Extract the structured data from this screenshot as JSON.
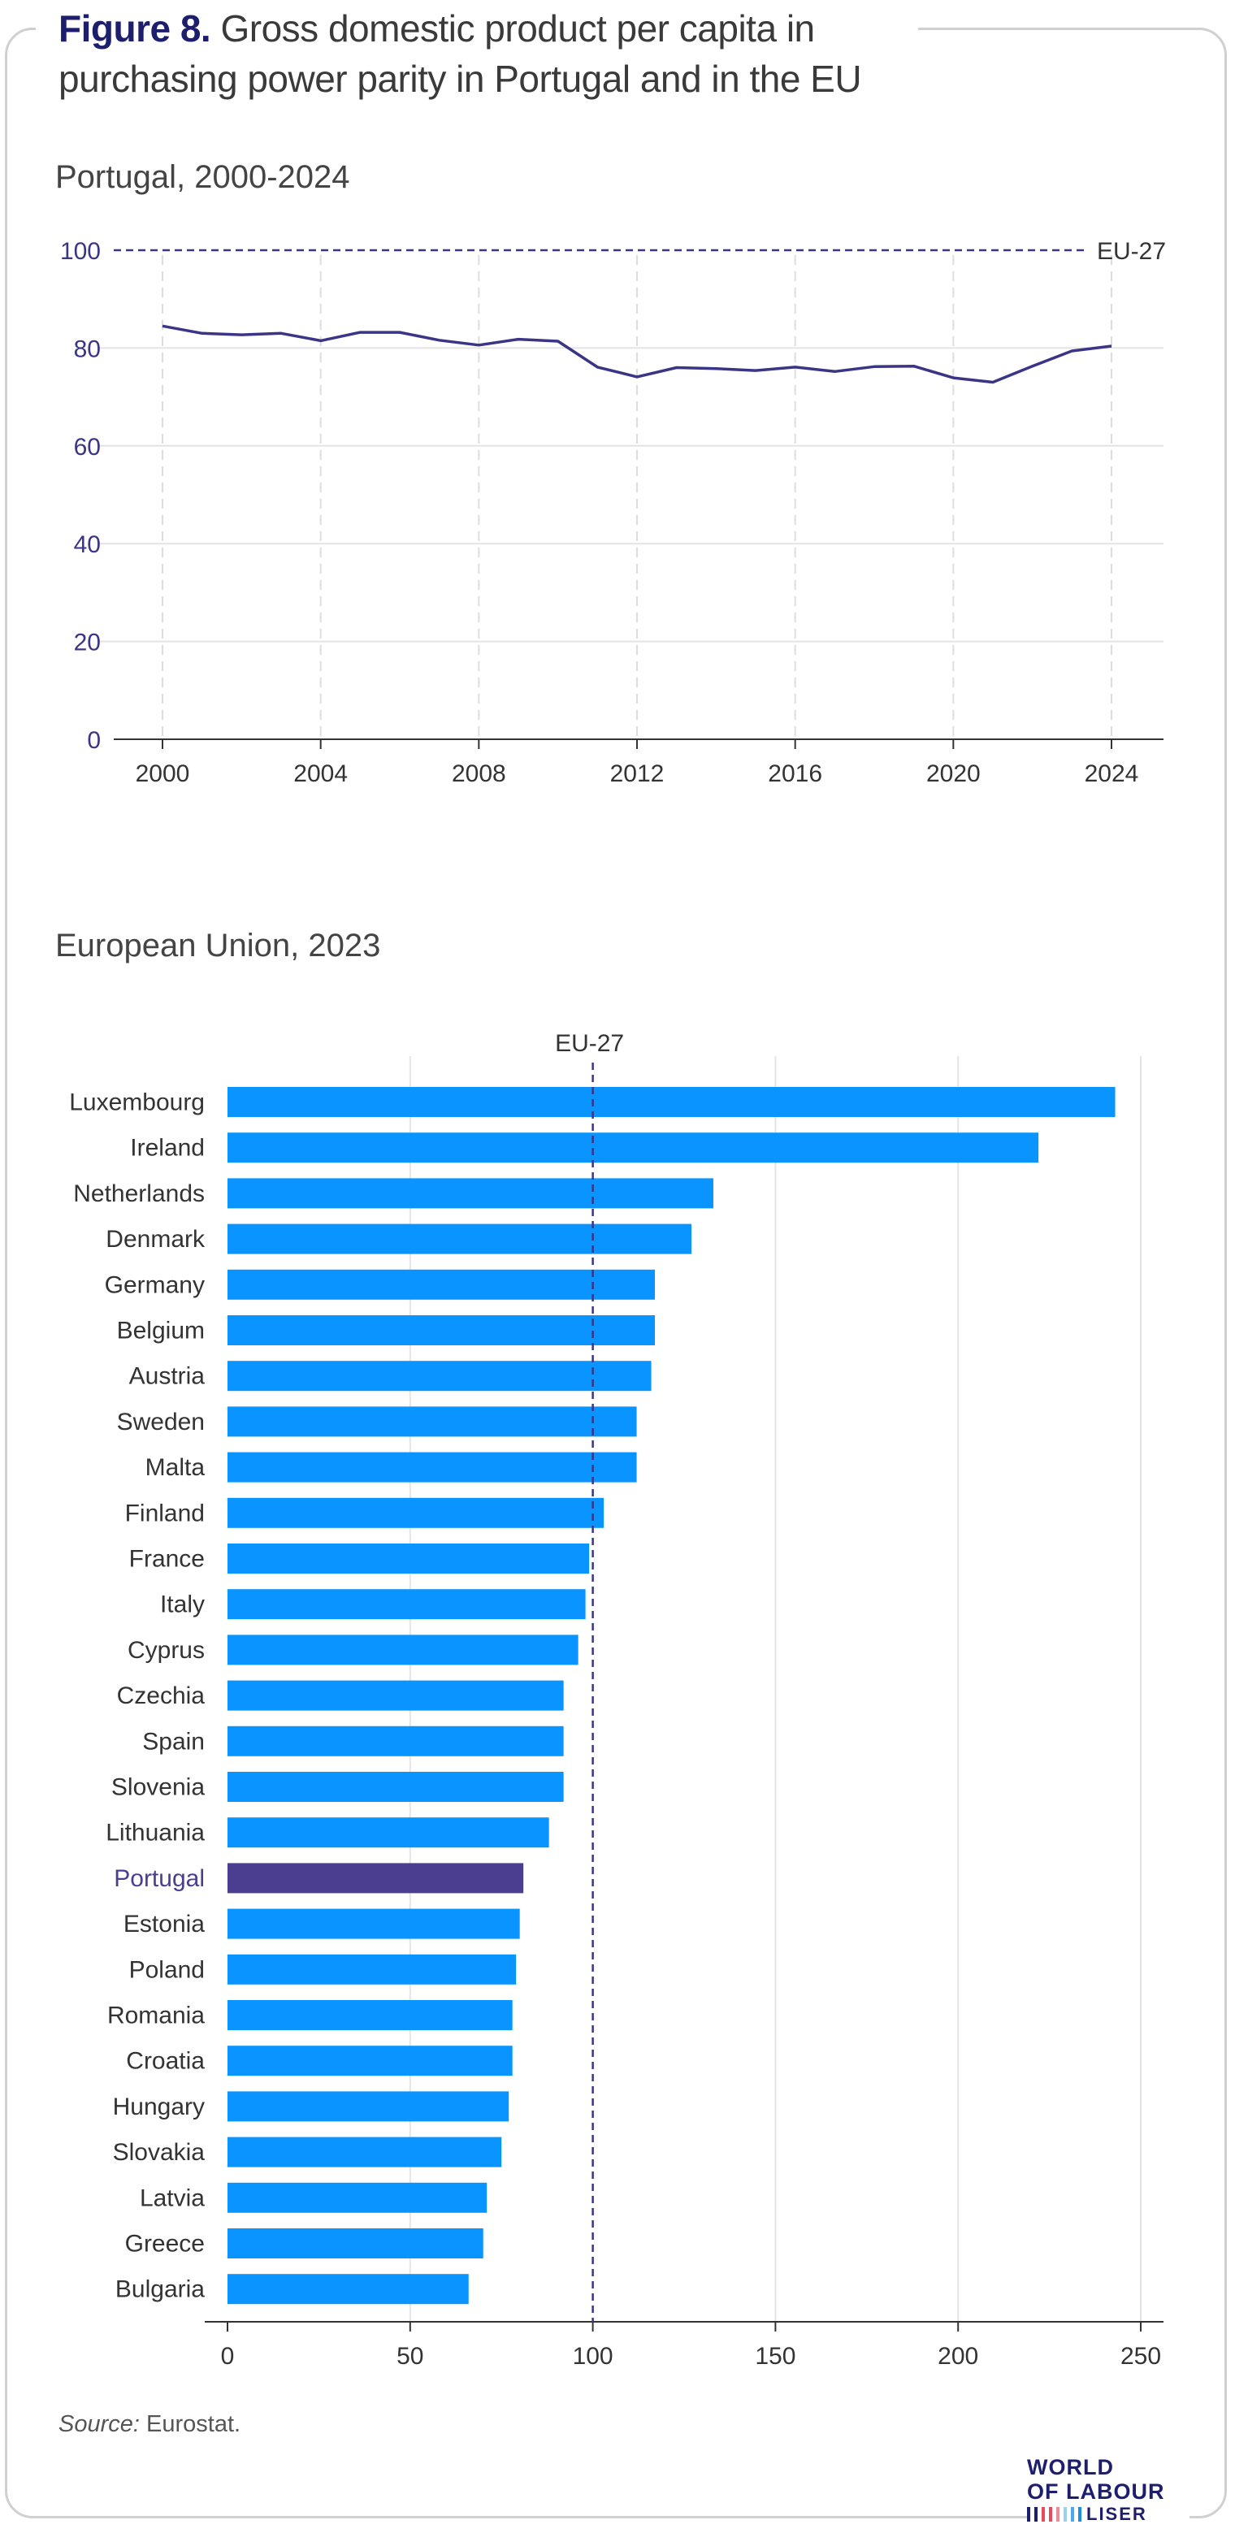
{
  "title": {
    "figure_label": "Figure 8.",
    "line1": "Gross domestic product per capita in",
    "line2": "purchasing power parity in Portugal and in the EU"
  },
  "source": {
    "label": "Source:",
    "text": "Eurostat."
  },
  "logo": {
    "line1": "WORLD",
    "line2": "OF LABOUR",
    "line3": "LISER"
  },
  "colors": {
    "line": "#3a3585",
    "bar": "#0a94ff",
    "bar_highlight": "#4b3e91",
    "reference": "#3a3585",
    "grid": "#e4e4e4",
    "axis_text_left": "#3a3585"
  },
  "chart_data": [
    {
      "type": "line",
      "title": "Portugal, 2000-2024",
      "x": [
        2000,
        2001,
        2002,
        2003,
        2004,
        2005,
        2006,
        2007,
        2008,
        2009,
        2010,
        2011,
        2012,
        2013,
        2014,
        2015,
        2016,
        2017,
        2018,
        2019,
        2020,
        2021,
        2022,
        2023,
        2024
      ],
      "series": [
        {
          "values": [
            84.5,
            83,
            82.7,
            83,
            81.5,
            83.2,
            83.2,
            81.6,
            80.6,
            81.8,
            81.4,
            76.1,
            74.1,
            76,
            75.8,
            75.4,
            76.1,
            75.2,
            76.2,
            76.3,
            73.9,
            73,
            76.3,
            79.4,
            80.4
          ]
        }
      ],
      "xticks": [
        2000,
        2004,
        2008,
        2012,
        2016,
        2020,
        2024
      ],
      "yticks": [
        0,
        20,
        40,
        60,
        80,
        100
      ],
      "xlim": [
        2000,
        2024
      ],
      "ylim": [
        0,
        100
      ],
      "reference_line": {
        "value": 100,
        "label": "EU-27"
      },
      "grid": "vertical dashed and horizontal"
    },
    {
      "type": "bar",
      "orientation": "horizontal",
      "title": "European Union, 2023",
      "categories": [
        "Luxembourg",
        "Ireland",
        "Netherlands",
        "Denmark",
        "Germany",
        "Belgium",
        "Austria",
        "Sweden",
        "Malta",
        "Finland",
        "France",
        "Italy",
        "Cyprus",
        "Czechia",
        "Spain",
        "Slovenia",
        "Lithuania",
        "Portugal",
        "Estonia",
        "Poland",
        "Romania",
        "Croatia",
        "Hungary",
        "Slovakia",
        "Latvia",
        "Greece",
        "Bulgaria"
      ],
      "values": [
        243,
        222,
        133,
        127,
        117,
        117,
        116,
        112,
        112,
        103,
        99,
        98,
        96,
        92,
        92,
        92,
        88,
        81,
        80,
        79,
        78,
        78,
        77,
        75,
        71,
        70,
        66
      ],
      "highlight": "Portugal",
      "xticks": [
        0,
        50,
        100,
        150,
        200,
        250
      ],
      "xlim": [
        0,
        255
      ],
      "reference_line": {
        "value": 100,
        "label": "EU-27"
      },
      "grid": "vertical"
    }
  ]
}
